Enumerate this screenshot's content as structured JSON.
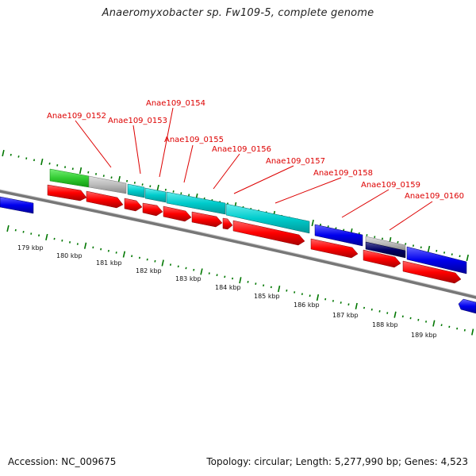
{
  "title": "Anaeromyxobacter sp. Fw109-5, complete genome",
  "footer": {
    "accession": "Accession: NC_009675",
    "topology": "Topology: circular; Length: 5,277,990 bp; Genes: 4,523"
  },
  "colors": {
    "cds_red": "#ff0000",
    "gene_blue": "#0000ee",
    "dark_blue": "#000066",
    "cyan": "#00cccc",
    "green": "#33cc33",
    "gray": "#bbbbbb",
    "tick_green": "#007700",
    "backbone": "#777777",
    "label_red": "#dd0000"
  },
  "gene_labels": [
    "Anae109_0152",
    "Anae109_0153",
    "Anae109_0154",
    "Anae109_0155",
    "Anae109_0156",
    "Anae109_0157",
    "Anae109_0158",
    "Anae109_0159",
    "Anae109_0160"
  ],
  "kbp_labels": [
    "179 kbp",
    "180 kbp",
    "181 kbp",
    "182 kbp",
    "183 kbp",
    "184 kbp",
    "185 kbp",
    "186 kbp",
    "187 kbp",
    "188 kbp",
    "189 kbp"
  ]
}
